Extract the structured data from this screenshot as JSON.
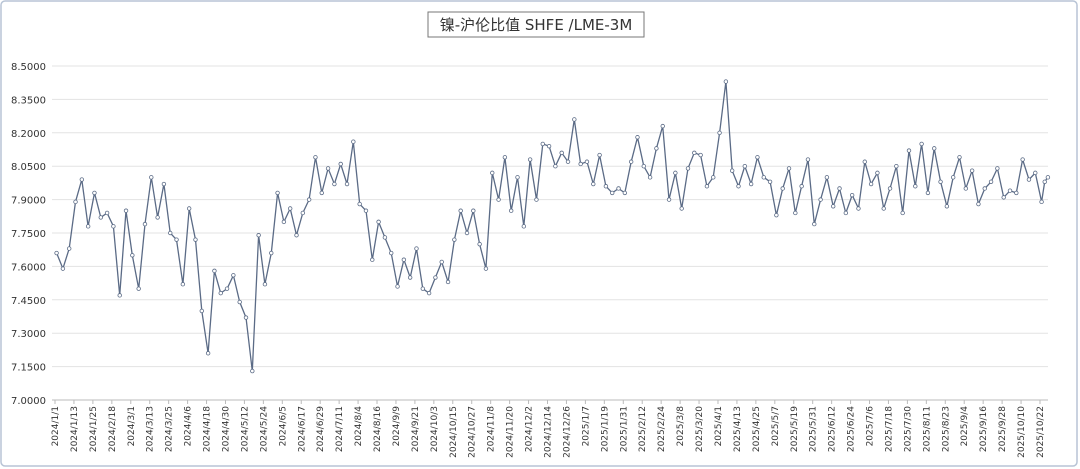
{
  "chart_data": {
    "type": "line",
    "title": "镍-沪伦比值 SHFE /LME-3M",
    "x": [
      "2024/1/2",
      "2024/1/6",
      "2024/1/10",
      "2024/1/14",
      "2024/1/18",
      "2024/1/22",
      "2024/1/27",
      "2024/2/4",
      "2024/2/12",
      "2024/2/19",
      "2024/2/23",
      "2024/2/27",
      "2024/3/2",
      "2024/3/6",
      "2024/3/10",
      "2024/3/14",
      "2024/3/18",
      "2024/3/22",
      "2024/3/26",
      "2024/3/30",
      "2024/4/3",
      "2024/4/7",
      "2024/4/11",
      "2024/4/15",
      "2024/4/19",
      "2024/4/23",
      "2024/4/27",
      "2024/5/1",
      "2024/5/5",
      "2024/5/9",
      "2024/5/13",
      "2024/5/17",
      "2024/5/21",
      "2024/5/25",
      "2024/5/29",
      "2024/6/2",
      "2024/6/6",
      "2024/6/10",
      "2024/6/14",
      "2024/6/18",
      "2024/6/22",
      "2024/6/26",
      "2024/6/30",
      "2024/7/4",
      "2024/7/8",
      "2024/7/13",
      "2024/7/21",
      "2024/7/29",
      "2024/8/5",
      "2024/8/9",
      "2024/8/13",
      "2024/8/18",
      "2024/8/26",
      "2024/9/3",
      "2024/9/10",
      "2024/9/14",
      "2024/9/18",
      "2024/9/22",
      "2024/9/26",
      "2024/9/30",
      "2024/10/4",
      "2024/10/8",
      "2024/10/12",
      "2024/10/16",
      "2024/10/20",
      "2024/10/24",
      "2024/10/28",
      "2024/11/1",
      "2024/11/5",
      "2024/11/9",
      "2024/11/13",
      "2024/11/17",
      "2024/11/21",
      "2024/11/25",
      "2024/11/29",
      "2024/12/3",
      "2024/12/7",
      "2024/12/11",
      "2024/12/15",
      "2024/12/19",
      "2024/12/23",
      "2024/12/27",
      "2024/12/31",
      "2025/1/4",
      "2025/1/8",
      "2025/1/12",
      "2025/1/16",
      "2025/1/20",
      "2025/1/24",
      "2025/1/28",
      "2025/2/1",
      "2025/2/5",
      "2025/2/9",
      "2025/2/13",
      "2025/2/17",
      "2025/2/21",
      "2025/2/25",
      "2025/3/1",
      "2025/3/5",
      "2025/3/9",
      "2025/3/13",
      "2025/3/17",
      "2025/3/21",
      "2025/3/25",
      "2025/3/29",
      "2025/4/2",
      "2025/4/6",
      "2025/4/10",
      "2025/4/14",
      "2025/4/18",
      "2025/4/22",
      "2025/4/26",
      "2025/4/30",
      "2025/5/4",
      "2025/5/8",
      "2025/5/12",
      "2025/5/16",
      "2025/5/20",
      "2025/5/24",
      "2025/5/28",
      "2025/6/1",
      "2025/6/5",
      "2025/6/9",
      "2025/6/13",
      "2025/6/17",
      "2025/6/21",
      "2025/6/25",
      "2025/6/29",
      "2025/7/3",
      "2025/7/7",
      "2025/7/11",
      "2025/7/15",
      "2025/7/19",
      "2025/7/23",
      "2025/7/27",
      "2025/7/31",
      "2025/8/4",
      "2025/8/8",
      "2025/8/12",
      "2025/8/16",
      "2025/8/20",
      "2025/8/24",
      "2025/8/28",
      "2025/9/1",
      "2025/9/5",
      "2025/9/9",
      "2025/9/13",
      "2025/9/17",
      "2025/9/21",
      "2025/9/25",
      "2025/9/29",
      "2025/10/3",
      "2025/10/7",
      "2025/10/11",
      "2025/10/15",
      "2025/10/19",
      "2025/10/23",
      "2025/10/25",
      "2025/10/27"
    ],
    "series": [
      {
        "color": "#5b6b86",
        "values": [
          7.66,
          7.59,
          7.68,
          7.89,
          7.99,
          7.78,
          7.93,
          7.82,
          7.84,
          7.78,
          7.47,
          7.85,
          7.65,
          7.5,
          7.79,
          8.0,
          7.82,
          7.97,
          7.75,
          7.72,
          7.52,
          7.86,
          7.72,
          7.4,
          7.21,
          7.58,
          7.48,
          7.5,
          7.56,
          7.44,
          7.37,
          7.13,
          7.74,
          7.52,
          7.66,
          7.93,
          7.8,
          7.86,
          7.74,
          7.84,
          7.9,
          8.09,
          7.93,
          8.04,
          7.97,
          8.06,
          7.97,
          8.16,
          7.88,
          7.85,
          7.63,
          7.8,
          7.73,
          7.66,
          7.51,
          7.63,
          7.55,
          7.68,
          7.5,
          7.48,
          7.55,
          7.62,
          7.53,
          7.72,
          7.85,
          7.75,
          7.85,
          7.7,
          7.59,
          8.02,
          7.9,
          8.09,
          7.85,
          8.0,
          7.78,
          8.08,
          7.9,
          8.15,
          8.14,
          8.05,
          8.11,
          8.07,
          8.26,
          8.06,
          8.07,
          7.97,
          8.1,
          7.96,
          7.93,
          7.95,
          7.93,
          8.07,
          8.18,
          8.05,
          8.0,
          8.13,
          8.23,
          7.9,
          8.02,
          7.86,
          8.04,
          8.11,
          8.1,
          7.96,
          8.0,
          8.2,
          8.43,
          8.03,
          7.96,
          8.05,
          7.97,
          8.09,
          8.0,
          7.98,
          7.83,
          7.95,
          8.04,
          7.84,
          7.96,
          8.08,
          7.79,
          7.9,
          8.0,
          7.87,
          7.95,
          7.84,
          7.92,
          7.86,
          8.07,
          7.97,
          8.02,
          7.86,
          7.95,
          8.05,
          7.84,
          8.12,
          7.96,
          8.15,
          7.93,
          8.13,
          7.98,
          7.87,
          8.0,
          8.09,
          7.95,
          8.03,
          7.88,
          7.95,
          7.98,
          8.04,
          7.91,
          7.94,
          7.93,
          8.08,
          7.99,
          8.02,
          7.89,
          7.98,
          8.0
        ]
      }
    ],
    "ylim": [
      7.0,
      8.5
    ],
    "yticks": [
      {
        "value": 7.0,
        "label": "7.0000"
      },
      {
        "value": 7.15,
        "label": "7.1500"
      },
      {
        "value": 7.3,
        "label": "7.3000"
      },
      {
        "value": 7.45,
        "label": "7.4500"
      },
      {
        "value": 7.6,
        "label": "7.6000"
      },
      {
        "value": 7.75,
        "label": "7.7500"
      },
      {
        "value": 7.9,
        "label": "7.9000"
      },
      {
        "value": 8.05,
        "label": "8.0500"
      },
      {
        "value": 8.2,
        "label": "8.2000"
      },
      {
        "value": 8.35,
        "label": "8.3500"
      },
      {
        "value": 8.5,
        "label": "8.5000"
      }
    ],
    "xticks": [
      "2024/1/1",
      "2024/1/13",
      "2024/1/25",
      "2024/2/18",
      "2024/3/1",
      "2024/3/13",
      "2024/3/25",
      "2024/4/6",
      "2024/4/18",
      "2024/4/30",
      "2024/5/12",
      "2024/5/24",
      "2024/6/5",
      "2024/6/17",
      "2024/6/29",
      "2024/7/11",
      "2024/8/4",
      "2024/8/16",
      "2024/9/9",
      "2024/9/21",
      "2024/10/3",
      "2024/10/15",
      "2024/10/27",
      "2024/11/8",
      "2024/11/20",
      "2024/12/2",
      "2024/12/14",
      "2024/12/26",
      "2025/1/7",
      "2025/1/19",
      "2025/1/31",
      "2025/2/12",
      "2025/2/24",
      "2025/3/8",
      "2025/3/20",
      "2025/4/1",
      "2025/4/13",
      "2025/4/25",
      "2025/5/7",
      "2025/5/19",
      "2025/5/31",
      "2025/6/12",
      "2025/6/24",
      "2025/7/6",
      "2025/7/18",
      "2025/7/30",
      "2025/8/11",
      "2025/8/23",
      "2025/9/4",
      "2025/9/16",
      "2025/9/28",
      "2025/10/10",
      "2025/10/22"
    ],
    "grid": true
  }
}
